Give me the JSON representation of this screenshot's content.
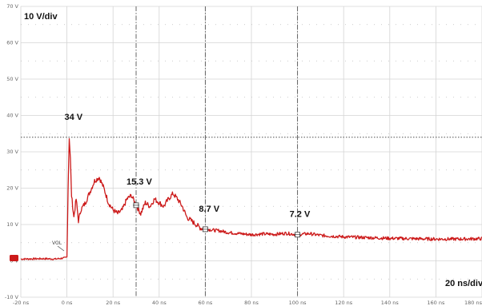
{
  "chart_data": {
    "type": "line",
    "title": "",
    "xlabel": "",
    "ylabel": "",
    "xlim": [
      -20,
      180
    ],
    "ylim": [
      -10,
      70
    ],
    "x_ticks": [
      -20,
      0,
      20,
      40,
      60,
      80,
      100,
      120,
      140,
      160,
      180
    ],
    "x_tick_labels": [
      "-20 ns",
      "0 ns",
      "20 ns",
      "40 ns",
      "60 ns",
      "80 ns",
      "100 ns",
      "120 ns",
      "140 ns",
      "160 ns",
      "180 ns"
    ],
    "y_ticks": [
      -10,
      0,
      10,
      20,
      30,
      40,
      50,
      60,
      70
    ],
    "y_tick_labels": [
      "-10 V",
      "0 V",
      "10 V",
      "20 V",
      "30 V",
      "40 V",
      "50 V",
      "60 V",
      "70 V"
    ],
    "grid": true,
    "vertical_scale": "10 V/div",
    "horizontal_scale": "20 ns/div",
    "reference_label": "VOL",
    "trace_color": "#cc1a1a",
    "peak_line_value": 34,
    "series": [
      {
        "name": "",
        "color": "#cc1a1a",
        "x": [
          -20,
          -10,
          -5,
          -1,
          0,
          0.5,
          1,
          1.5,
          2,
          3,
          4,
          5,
          6,
          8,
          10,
          12,
          14,
          16,
          18,
          20,
          22,
          24,
          26,
          28,
          30,
          32,
          34,
          36,
          38,
          40,
          42,
          44,
          46,
          48,
          50,
          52,
          54,
          56,
          58,
          60,
          62,
          64,
          66,
          70,
          75,
          80,
          85,
          90,
          95,
          100,
          105,
          110,
          115,
          120,
          130,
          140,
          150,
          160,
          170,
          180
        ],
        "y": [
          0.5,
          0.6,
          0.5,
          0.8,
          1.0,
          20,
          34,
          28,
          18,
          12,
          17,
          11,
          14,
          16,
          19,
          22,
          23,
          20,
          16,
          14,
          13,
          14,
          17,
          18,
          15.3,
          13,
          16,
          15,
          17,
          16,
          15,
          17,
          18.5,
          17,
          15,
          12,
          11,
          10,
          9,
          8.7,
          8.6,
          8.4,
          8.3,
          7.8,
          7.5,
          7.2,
          7.4,
          7.3,
          7.6,
          7.2,
          7.5,
          7.0,
          6.8,
          6.6,
          6.4,
          6.2,
          6.1,
          6.0,
          6.0,
          6.1
        ]
      }
    ],
    "annotations": [
      {
        "text": "34 V",
        "x": 1,
        "y": 34
      },
      {
        "text": "15.3 V",
        "x": 30,
        "y": 15.3
      },
      {
        "text": "8.7 V",
        "x": 60,
        "y": 8.7
      },
      {
        "text": "7.2 V",
        "x": 100,
        "y": 7.2
      }
    ],
    "cursors_x": [
      30,
      60,
      100
    ]
  }
}
